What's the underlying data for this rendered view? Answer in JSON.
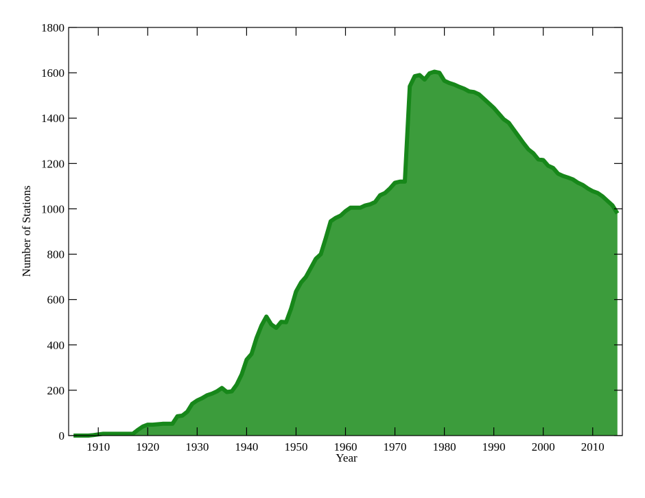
{
  "chart_data": {
    "type": "area",
    "xlabel": "Year",
    "ylabel": "Number of Stations",
    "x": [
      1905,
      1906,
      1907,
      1908,
      1909,
      1910,
      1911,
      1912,
      1913,
      1914,
      1915,
      1916,
      1917,
      1918,
      1919,
      1920,
      1921,
      1922,
      1923,
      1924,
      1925,
      1926,
      1927,
      1928,
      1929,
      1930,
      1931,
      1932,
      1933,
      1934,
      1935,
      1936,
      1937,
      1938,
      1939,
      1940,
      1941,
      1942,
      1943,
      1944,
      1945,
      1946,
      1947,
      1948,
      1949,
      1950,
      1951,
      1952,
      1953,
      1954,
      1955,
      1956,
      1957,
      1958,
      1959,
      1960,
      1961,
      1962,
      1963,
      1964,
      1965,
      1966,
      1967,
      1968,
      1969,
      1970,
      1971,
      1972,
      1973,
      1974,
      1975,
      1976,
      1977,
      1978,
      1979,
      1980,
      1981,
      1982,
      1983,
      1984,
      1985,
      1986,
      1987,
      1988,
      1989,
      1990,
      1991,
      1992,
      1993,
      1994,
      1995,
      1996,
      1997,
      1998,
      1999,
      2000,
      2001,
      2002,
      2003,
      2004,
      2005,
      2006,
      2007,
      2008,
      2009,
      2010,
      2011,
      2012,
      2013,
      2014,
      2015
    ],
    "values": [
      0,
      0,
      0,
      0,
      2,
      5,
      8,
      8,
      8,
      8,
      8,
      8,
      8,
      25,
      40,
      48,
      48,
      50,
      52,
      52,
      52,
      85,
      88,
      105,
      140,
      155,
      165,
      178,
      185,
      195,
      210,
      192,
      195,
      225,
      270,
      335,
      360,
      430,
      485,
      525,
      490,
      475,
      502,
      500,
      560,
      635,
      675,
      700,
      740,
      780,
      800,
      870,
      945,
      960,
      970,
      990,
      1005,
      1005,
      1005,
      1015,
      1020,
      1030,
      1060,
      1070,
      1090,
      1115,
      1120,
      1120,
      1540,
      1585,
      1590,
      1570,
      1598,
      1605,
      1600,
      1565,
      1555,
      1548,
      1538,
      1530,
      1518,
      1515,
      1505,
      1485,
      1465,
      1445,
      1420,
      1395,
      1380,
      1350,
      1320,
      1290,
      1262,
      1245,
      1218,
      1215,
      1190,
      1180,
      1155,
      1145,
      1138,
      1130,
      1115,
      1105,
      1090,
      1078,
      1070,
      1055,
      1035,
      1015,
      980
    ],
    "fill_color": "#3c9c3c",
    "line_color": "#17871a",
    "xlim": [
      1904,
      2016
    ],
    "xticks": [
      1910,
      1920,
      1930,
      1940,
      1950,
      1960,
      1970,
      1980,
      1990,
      2000,
      2010
    ],
    "ylim": [
      0,
      1800
    ],
    "yticks": [
      0,
      200,
      400,
      600,
      800,
      1000,
      1200,
      1400,
      1600,
      1800
    ]
  }
}
